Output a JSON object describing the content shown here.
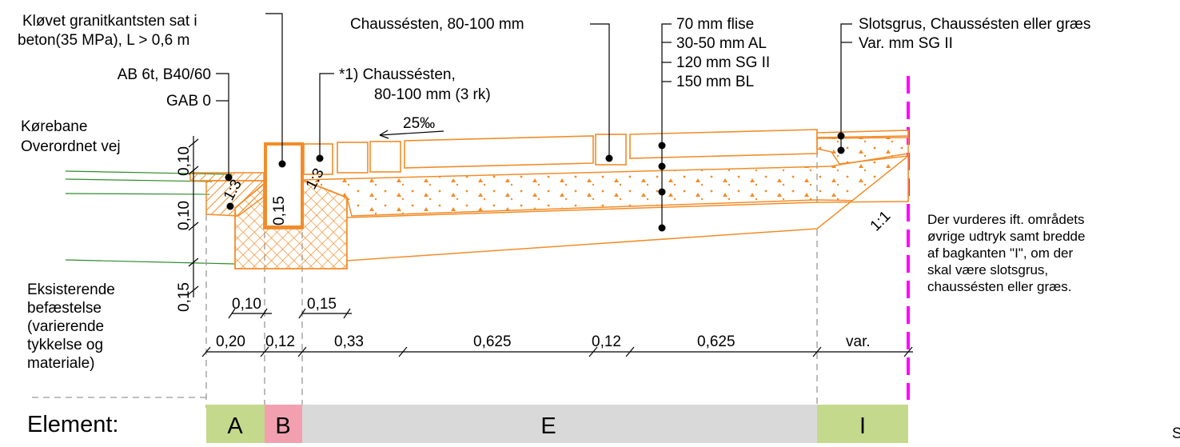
{
  "labels": {
    "kantsten_1": "Kløvet granitkantsten sat i",
    "kantsten_2": "beton(35 MPa), L > 0,6 m",
    "ab_1": "AB 6t, B40/60",
    "ab_2": "GAB 0",
    "chaussesten_top": "Chaussésten, 80-100 mm",
    "chaussesten_rk_1": "*1) Chaussésten,",
    "chaussesten_rk_2": "80-100 mm (3 rk)",
    "layer_1": "70 mm flise",
    "layer_2": "30-50 mm AL",
    "layer_3": "120 mm SG II",
    "layer_4": "150 mm BL",
    "slotsgrus_1": "Slotsgrus, Chaussésten eller græs",
    "slotsgrus_2": "Var. mm SG II",
    "slope_top": "25‰",
    "korebane_1": "Kørebane",
    "korebane_2": "Overordnet vej",
    "eksisterende": [
      "Eksisterende",
      "befæstelse",
      "(varierende",
      "tykkelse og",
      "materiale)"
    ],
    "note": [
      "Der vurderes ift. områdets",
      "øvrige udtryk samt bredde",
      "af bagkanten \"I\", om der",
      "skal være slotsgrus,",
      "chaussésten eller græs."
    ],
    "ratio_1": "1:3",
    "ratio_2": "1:3",
    "ratio_3": "1:1",
    "clip_s": "S"
  },
  "dims": {
    "vertical": [
      "0,10",
      "0,10",
      "0,15"
    ],
    "curb_height": "0,15",
    "small_widths": [
      "0,10",
      "0,15"
    ],
    "widths": [
      "0,20",
      "0,12",
      "0,33",
      "0,625",
      "0,12",
      "0,625",
      "var."
    ]
  },
  "elements": {
    "title": "Element:",
    "items": [
      {
        "label": "A",
        "color": "#c5d98c"
      },
      {
        "label": "B",
        "color": "#f2a0b0"
      },
      {
        "label": "E",
        "color": "#d9d9d9"
      },
      {
        "label": "I",
        "color": "#c5d98c"
      }
    ]
  },
  "colors": {
    "construction": "#f28c28",
    "boundary": "#ff00ff",
    "existing_road": "#2e8b2e"
  }
}
